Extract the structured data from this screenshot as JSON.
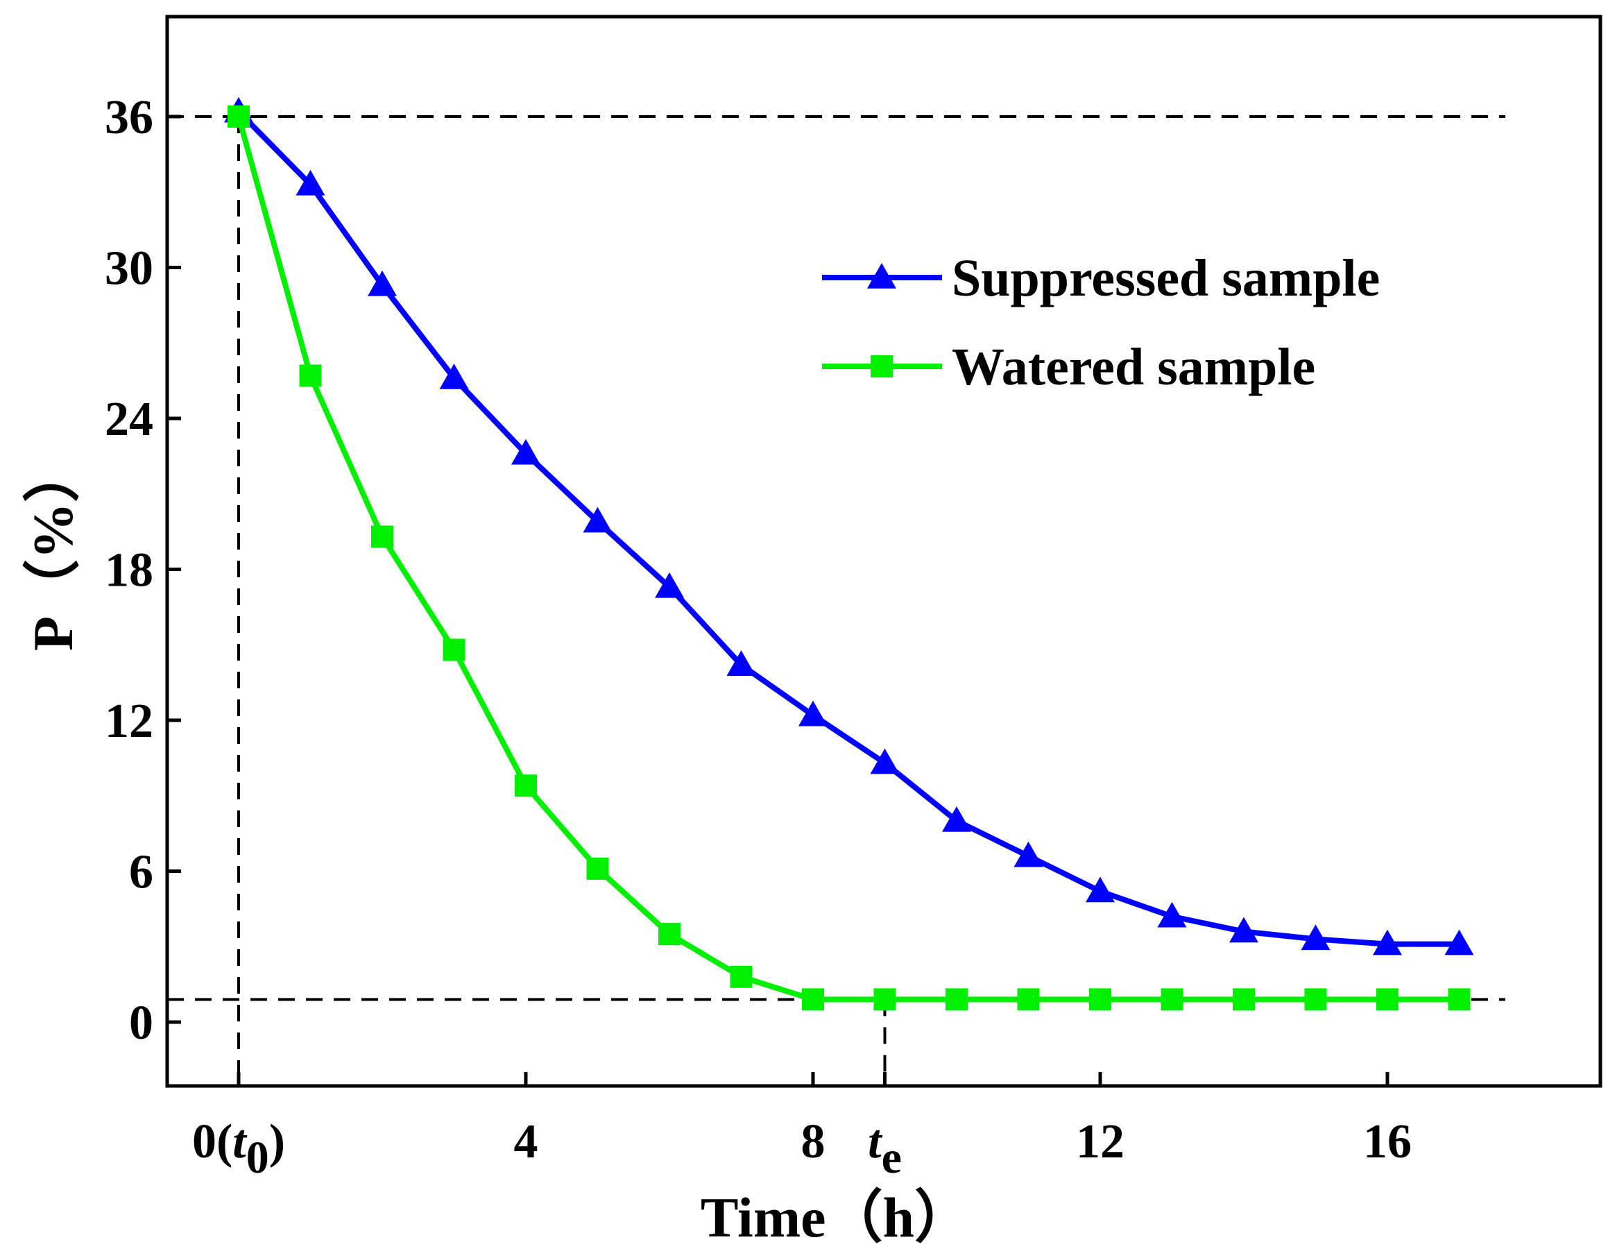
{
  "chart_data": {
    "type": "line",
    "title": "",
    "xlabel": "Time（h）",
    "ylabel": "P（%）",
    "xlim": [
      -1,
      19
    ],
    "ylim": [
      -2.5,
      39.5
    ],
    "x_ticks": [
      {
        "value": 0,
        "main": "0(",
        "italic": "t",
        "sub": "0",
        "close": ")"
      },
      {
        "value": 4,
        "main": "4"
      },
      {
        "value": 8,
        "main": "8"
      },
      {
        "value": 9,
        "italic": "t",
        "sub": "e"
      },
      {
        "value": 12,
        "main": "12"
      },
      {
        "value": 16,
        "main": "16"
      }
    ],
    "y_ticks": [
      0,
      6,
      12,
      18,
      24,
      30,
      36
    ],
    "series": [
      {
        "name": "Suppressed sample",
        "color": "#0000ff",
        "marker": "triangle",
        "x": [
          0,
          1,
          2,
          3,
          4,
          5,
          6,
          7,
          8,
          9,
          10,
          11,
          12,
          13,
          14,
          15,
          16,
          17
        ],
        "values": [
          36.2,
          33.3,
          29.3,
          25.6,
          22.6,
          19.9,
          17.3,
          14.2,
          12.2,
          10.3,
          8.0,
          6.6,
          5.2,
          4.2,
          3.6,
          3.3,
          3.1,
          3.1
        ]
      },
      {
        "name": "Watered sample",
        "color": "#00ee00",
        "marker": "square",
        "x": [
          0,
          1,
          2,
          3,
          4,
          5,
          6,
          7,
          8,
          9,
          10,
          11,
          12,
          13,
          14,
          15,
          16,
          17
        ],
        "values": [
          36.0,
          25.7,
          19.3,
          14.8,
          9.4,
          6.1,
          3.5,
          1.8,
          0.9,
          0.9,
          0.9,
          0.9,
          0.9,
          0.9,
          0.9,
          0.9,
          0.9,
          0.9
        ]
      }
    ],
    "reference_lines": {
      "horizontal": [
        36,
        0.9
      ],
      "vertical": [
        {
          "x": 0,
          "from": -2.5,
          "to": 36
        },
        {
          "x": 9,
          "from": -2.5,
          "to": 0.9
        }
      ]
    },
    "legend_position": "top-right"
  }
}
